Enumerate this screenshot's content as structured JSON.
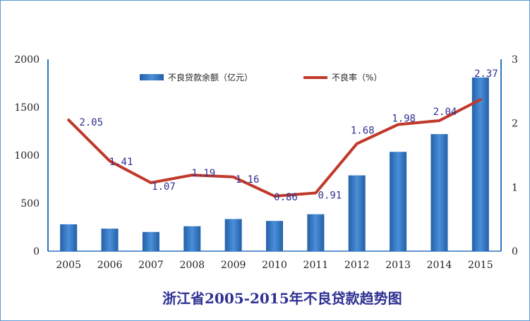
{
  "chart_data": {
    "type": "bar+line",
    "title": "浙江省2005-2015年不良贷款趋势图",
    "categories": [
      "2005",
      "2006",
      "2007",
      "2008",
      "2009",
      "2010",
      "2011",
      "2012",
      "2013",
      "2014",
      "2015"
    ],
    "series": [
      {
        "name": "不良贷款余额（亿元）",
        "type": "bar",
        "axis": "left",
        "color": "#2e75c0",
        "values": [
          280,
          235,
          200,
          260,
          335,
          315,
          385,
          790,
          1035,
          1220,
          1810
        ]
      },
      {
        "name": "不良率（%）",
        "type": "line",
        "axis": "right",
        "color": "#c0392b",
        "values": [
          2.05,
          1.41,
          1.07,
          1.19,
          1.16,
          0.86,
          0.91,
          1.68,
          1.98,
          2.04,
          2.37
        ],
        "labels": [
          "2.05",
          "1.41",
          "1.07",
          "1.19",
          "1.16",
          "0.86",
          "0.91",
          "1.68",
          "1.98",
          "2.04",
          "2.37"
        ]
      }
    ],
    "y_left": {
      "min": 0,
      "max": 2000,
      "ticks": [
        "0",
        "500",
        "1000",
        "1500",
        "2000"
      ]
    },
    "y_right": {
      "min": 0,
      "max": 3,
      "ticks": [
        "0",
        "1",
        "2",
        "3"
      ]
    },
    "legend": {
      "position": "top-center"
    }
  }
}
